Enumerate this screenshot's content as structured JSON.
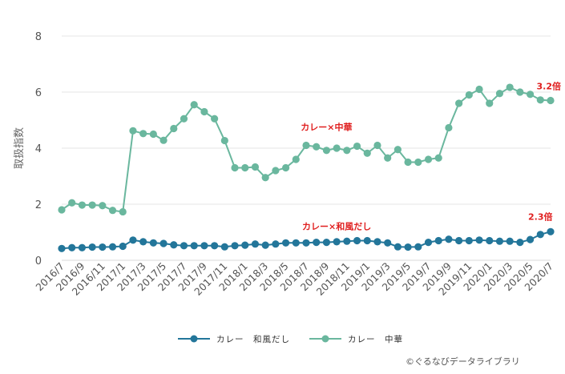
{
  "chart_data": {
    "type": "line",
    "title": "",
    "xlabel": "",
    "ylabel": "取扱指数",
    "ylim": [
      0,
      8
    ],
    "yticks": [
      0,
      2,
      4,
      6,
      8
    ],
    "grid": true,
    "legend_position": "bottom",
    "x": [
      "2016/7",
      "2016/8",
      "2016/9",
      "2016/10",
      "2016/11",
      "2016/12",
      "2017/1",
      "2017/2",
      "2017/3",
      "2017/4",
      "2017/5",
      "2017/6",
      "2017/7",
      "2017/8",
      "2017/9",
      "2017/10",
      "2017/11",
      "2017/12",
      "2018/1",
      "2018/2",
      "2018/3",
      "2018/4",
      "2018/5",
      "2018/6",
      "2018/7",
      "2018/8",
      "2018/9",
      "2018/10",
      "2018/11",
      "2018/12",
      "2019/1",
      "2019/2",
      "2019/3",
      "2019/4",
      "2019/5",
      "2019/6",
      "2019/7",
      "2019/8",
      "2019/9",
      "2019/10",
      "2019/11",
      "2019/12",
      "2020/1",
      "2020/2",
      "2020/3",
      "2020/4",
      "2020/5",
      "2020/6",
      "2020/7"
    ],
    "xtick_labels": [
      "2016/7",
      "2016/9",
      "2016/11",
      "2017/1",
      "2017/3",
      "2017/5",
      "2017/7",
      "2017/9",
      "2017/11",
      "2018/1",
      "2018/3",
      "2018/5",
      "2018/7",
      "2018/9",
      "2018/11",
      "2019/1",
      "2019/3",
      "2019/5",
      "2019/7",
      "2019/9",
      "2019/11",
      "2020/1",
      "2020/3",
      "2020/5",
      "2020/7"
    ],
    "series": [
      {
        "name": "カレー　和風だし",
        "color": "#23769a",
        "values": [
          0.42,
          0.45,
          0.45,
          0.47,
          0.47,
          0.48,
          0.5,
          0.72,
          0.66,
          0.62,
          0.6,
          0.55,
          0.52,
          0.52,
          0.52,
          0.52,
          0.48,
          0.52,
          0.54,
          0.58,
          0.54,
          0.58,
          0.62,
          0.62,
          0.62,
          0.64,
          0.64,
          0.66,
          0.68,
          0.7,
          0.7,
          0.66,
          0.62,
          0.48,
          0.47,
          0.48,
          0.64,
          0.7,
          0.75,
          0.7,
          0.7,
          0.72,
          0.7,
          0.68,
          0.68,
          0.64,
          0.74,
          0.92,
          1.02
        ]
      },
      {
        "name": "カレー　中華",
        "color": "#6ab79e",
        "values": [
          1.8,
          2.05,
          1.97,
          1.97,
          1.95,
          1.78,
          1.73,
          4.62,
          4.52,
          4.5,
          4.28,
          4.7,
          5.05,
          5.55,
          5.3,
          5.05,
          4.27,
          3.3,
          3.3,
          3.33,
          2.95,
          3.2,
          3.3,
          3.6,
          4.1,
          4.05,
          3.92,
          4.0,
          3.92,
          4.07,
          3.82,
          4.1,
          3.65,
          3.95,
          3.5,
          3.5,
          3.6,
          3.65,
          4.73,
          5.6,
          5.9,
          6.1,
          5.6,
          5.95,
          6.17,
          6.0,
          5.92,
          5.72,
          5.7
        ]
      }
    ],
    "annotations": [
      {
        "text": "3.2倍",
        "x": "2020/7",
        "y": 6.1
      },
      {
        "text": "カレー×中華",
        "x": "2018/9",
        "y": 4.65
      },
      {
        "text": "カレー×和風だし",
        "x": "2018/10",
        "y": 1.1
      },
      {
        "text": "2.3倍",
        "x": "2020/6",
        "y": 1.45
      }
    ]
  },
  "credit": "©ぐるなびデータライブラリ"
}
